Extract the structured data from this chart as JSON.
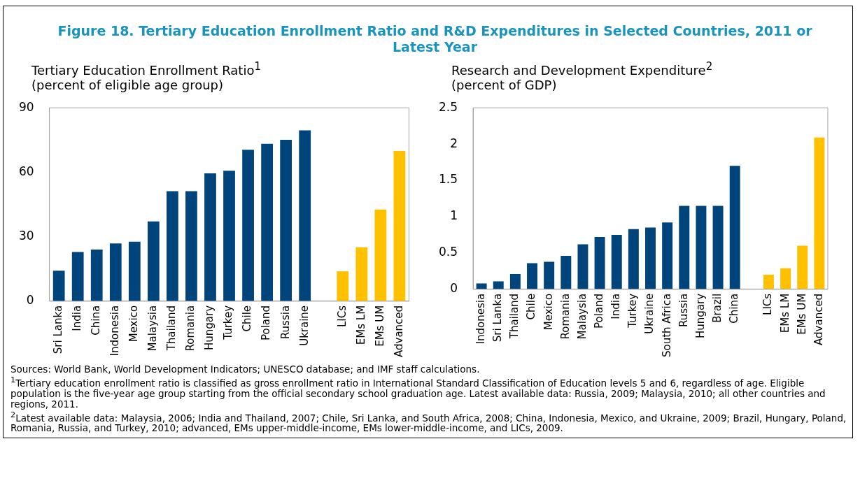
{
  "chart_data": [
    {
      "type": "other",
      "title": "Figure 18. Tertiary Education Enrollment Ratio and R&D Expenditures in Selected Countries, 2011 or Latest Year"
    },
    {
      "type": "bar",
      "title": "Tertiary Education Enrollment Ratio$^{1}$",
      "subtitle": "(percent of eligible age group)",
      "categories": [
        "Sri Lanka",
        "India",
        "China",
        "Indonesia",
        "Mexico",
        "Malaysia",
        "Thailand",
        "Romania",
        "Hungary",
        "Turkey",
        "Chile",
        "Poland",
        "Russia",
        "Ukraine",
        null,
        "LICs",
        "EMs LM",
        "EMs UM",
        "Advanced"
      ],
      "values": [
        14.2,
        22.9,
        24,
        26.9,
        27.7,
        37.1,
        51.2,
        51.2,
        59.5,
        60.7,
        70.5,
        73.2,
        75.1,
        79.5,
        null,
        13.9,
        25.1,
        42.7,
        69.9
      ],
      "colors": [
        "#00447c",
        "#00447c",
        "#00447c",
        "#00447c",
        "#00447c",
        "#00447c",
        "#00447c",
        "#00447c",
        "#00447c",
        "#00447c",
        "#00447c",
        "#00447c",
        "#00447c",
        "#00447c",
        "#00447c",
        "#ffc000",
        "#ffc000",
        "#ffc000",
        "#ffc000"
      ],
      "ylim": [
        0,
        90
      ],
      "yticks": [
        0,
        30,
        60,
        90
      ],
      "grid": false,
      "legend": false
    },
    {
      "type": "bar",
      "title": "Research and Development Expenditure$^{2}$",
      "subtitle": "(percent of GDP)",
      "categories": [
        "Indonesia",
        "Sri Lanka",
        "Thailand",
        "Chile",
        "Mexico",
        "Romania",
        "Malaysia",
        "Poland",
        "India",
        "Turkey",
        "Ukraine",
        "South Africa",
        "Russia",
        "Hungary",
        "Brazil",
        "China",
        null,
        "LICs",
        "EMs LM",
        "EMs UM",
        "Advanced"
      ],
      "values": [
        0.08,
        0.11,
        0.21,
        0.36,
        0.38,
        0.46,
        0.62,
        0.72,
        0.75,
        0.83,
        0.85,
        0.92,
        1.15,
        1.15,
        1.15,
        1.7,
        null,
        0.2,
        0.29,
        0.6,
        2.09
      ],
      "colors": [
        "#00447c",
        "#00447c",
        "#00447c",
        "#00447c",
        "#00447c",
        "#00447c",
        "#00447c",
        "#00447c",
        "#00447c",
        "#00447c",
        "#00447c",
        "#00447c",
        "#00447c",
        "#00447c",
        "#00447c",
        "#00447c",
        "#00447c",
        "#ffc000",
        "#ffc000",
        "#ffc000",
        "#ffc000"
      ],
      "ylim": [
        0,
        2.5
      ],
      "yticks": [
        0,
        0.5,
        1,
        1.5,
        2,
        2.5
      ],
      "grid": false,
      "legend": false
    },
    {
      "type": "other",
      "annotations": [
        "Sources: World Bank, World Development Indicators; UNESCO database; and IMF staff calculations.",
        "$^{1}$Tertiary education enrollment ratio is classified as gross enrollment ratio in International Standard Classification of Education levels 5 and 6, regardless of age. Eligible population is the five-year age group starting from the official secondary school graduation age. Latest available data: Russia, 2009; Malaysia, 2010; all other countries and regions, 2011.",
        "$^{2}$Latest available data: Malaysia, 2006; India and Thailand, 2007; Chile, Sri Lanka, and South Africa, 2008; China, Indonesia, Mexico, and Ukraine, 2009; Brazil, Hungary, Poland, Romania, Russia, and Turkey, 2010; advanced, EMs upper-middle-income, EMs lower-middle-income, and LICs, 2009."
      ]
    }
  ]
}
